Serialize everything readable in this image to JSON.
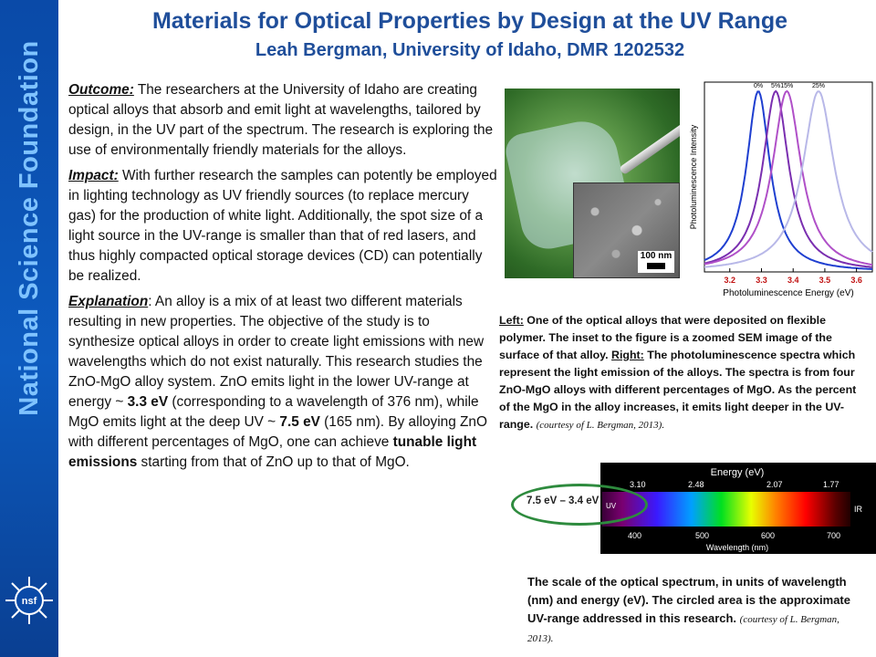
{
  "sidebar": {
    "org_name": "National Science Foundation",
    "logo_text": "nsf"
  },
  "header": {
    "title": "Materials for Optical Properties by Design at the UV Range",
    "subtitle": "Leah Bergman, University of Idaho, DMR 1202532"
  },
  "body": {
    "outcome_head": "Outcome:",
    "outcome_text": " The researchers  at the University of Idaho are creating optical  alloys that absorb and emit light at wavelengths, tailored by design, in the UV part of the spectrum.  The research  is exploring the use of environmentally  friendly materials for the alloys.",
    "impact_head": "Impact:",
    "impact_text": "  With further research the samples can potently be employed in lighting technology as UV friendly sources (to replace mercury gas) for the production of white light. Additionally, the spot size of a light source in the UV-range is smaller than that of red lasers, and thus highly compacted optical storage devices (CD) can potentially be realized.",
    "explanation_head": "Explanation",
    "explanation_text_1": ": An alloy is a mix of at least two different  materials resulting in new properties. The objective of the study is to synthesize optical alloys in order to create light emissions with new wavelengths which do not exist naturally. This research  studies the ZnO-MgO alloy system. ZnO emits light in the lower UV-range at energy ~ ",
    "zno_energy": "3.3 eV",
    "explanation_text_2": " (corresponding  to a wavelength of 376 nm), while MgO emits light at the deep UV ~ ",
    "mgo_energy": "7.5 eV",
    "explanation_text_3": " (165 nm). By alloying ZnO with different  percentages  of MgO, one can achieve ",
    "tunable": "tunable light emissions",
    "explanation_text_4": " starting from that of ZnO up to that of MgO."
  },
  "figure": {
    "scale_bar_label": "100 nm"
  },
  "chart_data": {
    "type": "line",
    "xlabel": "Photoluminescence Energy (eV)",
    "ylabel": "Photoluminescence Intensity",
    "xlim": [
      3.12,
      3.65
    ],
    "ylim": [
      0,
      1.05
    ],
    "x_ticks": [
      "3.2",
      "3.3",
      "3.4",
      "3.5",
      "3.6"
    ],
    "series": [
      {
        "name": "0%",
        "color": "#1f3fd0",
        "peak": 3.29,
        "width": 0.045
      },
      {
        "name": "5%",
        "color": "#7a2fb0",
        "peak": 3.345,
        "width": 0.05
      },
      {
        "name": "15%",
        "color": "#b050c8",
        "peak": 3.38,
        "width": 0.055
      },
      {
        "name": "25%",
        "color": "#b8b8e8",
        "peak": 3.48,
        "width": 0.06
      }
    ]
  },
  "caption_left": {
    "left_label": "Left:",
    "left_text": " One of the optical alloys that were deposited on flexible polymer. The inset to the figure is a zoomed SEM image of the surface of that alloy. ",
    "right_label": "Right:",
    "right_text": " The photoluminescence spectra  which represent the light emission  of the alloys. The spectra is from four ZnO-MgO alloys with different percentages of MgO. As the percent of the MgO in the alloy increases, it emits light deeper in the UV-range. ",
    "credit": "(courtesy of  L. Bergman, 2013)."
  },
  "spectrum": {
    "energy_title": "Energy (eV)",
    "energy_ticks": [
      "3.10",
      "2.48",
      "2.07",
      "1.77"
    ],
    "wavelength_title": "Wavelength (nm)",
    "wavelength_ticks": [
      "400",
      "500",
      "600",
      "700"
    ],
    "uv_label": "UV",
    "ir_label": "IR",
    "uv_range": "7.5 eV – 3.4 eV"
  },
  "caption_bottom": {
    "text": "The scale of the optical spectrum, in units of wavelength (nm) and energy (eV). The circled area is the approximate  UV-range addressed in this research. ",
    "credit": "(courtesy of  L. Bergman, 2013)."
  }
}
